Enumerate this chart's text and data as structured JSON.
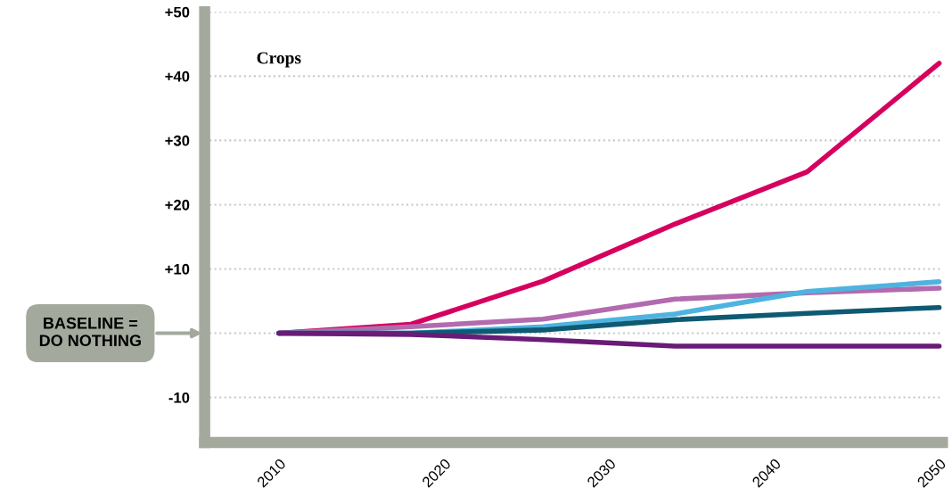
{
  "chart_data": {
    "type": "line",
    "title": "Crops",
    "x": [
      2010,
      2018,
      2026,
      2034,
      2042,
      2050
    ],
    "series": [
      {
        "color": "#d6005f",
        "values": [
          0,
          1.4,
          8.1,
          17,
          25.1,
          42
        ]
      },
      {
        "color": "#b36aae",
        "values": [
          0,
          1,
          2.2,
          5.3,
          6.3,
          7
        ]
      },
      {
        "color": "#4fb3e0",
        "values": [
          0,
          0,
          1,
          3,
          6.5,
          8
        ]
      },
      {
        "color": "#0e5a73",
        "values": [
          0,
          0,
          0.5,
          2.1,
          3.1,
          4
        ]
      },
      {
        "color": "#6a1b78",
        "values": [
          0,
          -0.2,
          -1,
          -2,
          -2,
          -2
        ]
      }
    ],
    "xlim": [
      2005.5,
      2050.2
    ],
    "xticks": [
      2010,
      2020,
      2030,
      2040,
      2050
    ],
    "ylim": [
      -17,
      50
    ],
    "yticks": [
      {
        "value": 50,
        "label": "+50"
      },
      {
        "value": 40,
        "label": "+40"
      },
      {
        "value": 30,
        "label": "+30"
      },
      {
        "value": 20,
        "label": "+20"
      },
      {
        "value": 10,
        "label": "+10"
      },
      {
        "value": 0,
        "label": null
      },
      {
        "value": -10,
        "label": "-10"
      }
    ],
    "grid": "y",
    "marker": "none",
    "line_style": "solid",
    "annotations": [
      "BASELINE =\nDO NOTHING"
    ]
  }
}
